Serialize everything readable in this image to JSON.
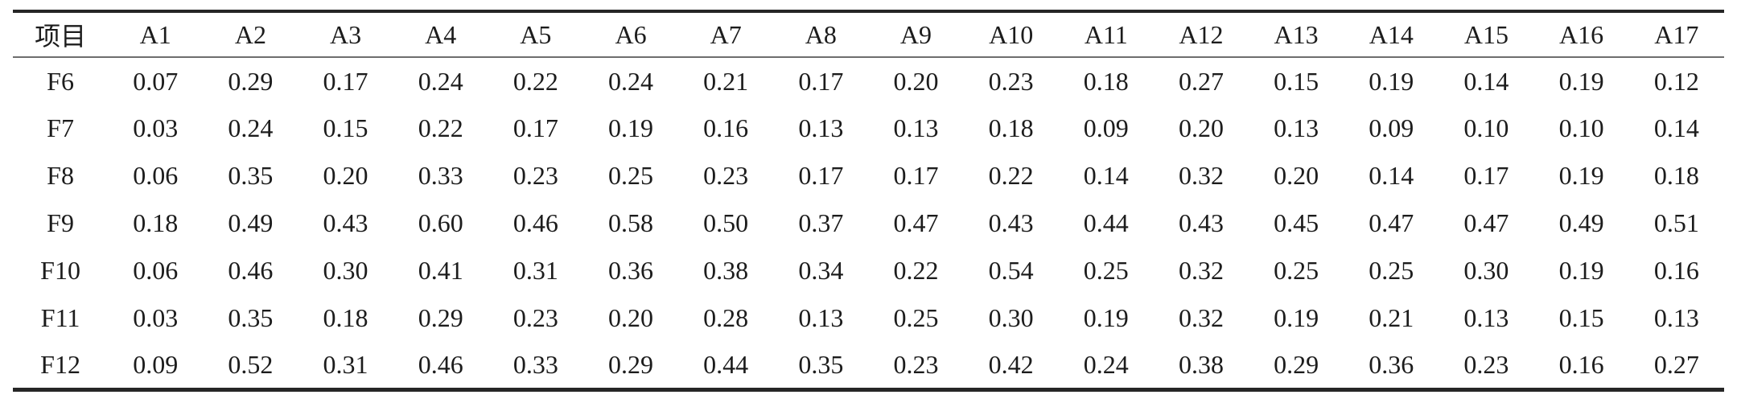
{
  "table": {
    "header_label": "项目",
    "columns": [
      "A1",
      "A2",
      "A3",
      "A4",
      "A5",
      "A6",
      "A7",
      "A8",
      "A9",
      "A10",
      "A11",
      "A12",
      "A13",
      "A14",
      "A15",
      "A16",
      "A17"
    ],
    "rows": [
      {
        "label": "F6",
        "values": [
          "0.07",
          "0.29",
          "0.17",
          "0.24",
          "0.22",
          "0.24",
          "0.21",
          "0.17",
          "0.20",
          "0.23",
          "0.18",
          "0.27",
          "0.15",
          "0.19",
          "0.14",
          "0.19",
          "0.12"
        ]
      },
      {
        "label": "F7",
        "values": [
          "0.03",
          "0.24",
          "0.15",
          "0.22",
          "0.17",
          "0.19",
          "0.16",
          "0.13",
          "0.13",
          "0.18",
          "0.09",
          "0.20",
          "0.13",
          "0.09",
          "0.10",
          "0.10",
          "0.14"
        ]
      },
      {
        "label": "F8",
        "values": [
          "0.06",
          "0.35",
          "0.20",
          "0.33",
          "0.23",
          "0.25",
          "0.23",
          "0.17",
          "0.17",
          "0.22",
          "0.14",
          "0.32",
          "0.20",
          "0.14",
          "0.17",
          "0.19",
          "0.18"
        ]
      },
      {
        "label": "F9",
        "values": [
          "0.18",
          "0.49",
          "0.43",
          "0.60",
          "0.46",
          "0.58",
          "0.50",
          "0.37",
          "0.47",
          "0.43",
          "0.44",
          "0.43",
          "0.45",
          "0.47",
          "0.47",
          "0.49",
          "0.51"
        ]
      },
      {
        "label": "F10",
        "values": [
          "0.06",
          "0.46",
          "0.30",
          "0.41",
          "0.31",
          "0.36",
          "0.38",
          "0.34",
          "0.22",
          "0.54",
          "0.25",
          "0.32",
          "0.25",
          "0.25",
          "0.30",
          "0.19",
          "0.16"
        ]
      },
      {
        "label": "F11",
        "values": [
          "0.03",
          "0.35",
          "0.18",
          "0.29",
          "0.23",
          "0.20",
          "0.28",
          "0.13",
          "0.25",
          "0.30",
          "0.19",
          "0.32",
          "0.19",
          "0.21",
          "0.13",
          "0.15",
          "0.13"
        ]
      },
      {
        "label": "F12",
        "values": [
          "0.09",
          "0.52",
          "0.31",
          "0.46",
          "0.33",
          "0.29",
          "0.44",
          "0.35",
          "0.23",
          "0.42",
          "0.24",
          "0.38",
          "0.29",
          "0.36",
          "0.23",
          "0.16",
          "0.27"
        ]
      }
    ]
  },
  "chart_data": {
    "type": "table",
    "title": "",
    "columns": [
      "项目",
      "A1",
      "A2",
      "A3",
      "A4",
      "A5",
      "A6",
      "A7",
      "A8",
      "A9",
      "A10",
      "A11",
      "A12",
      "A13",
      "A14",
      "A15",
      "A16",
      "A17"
    ],
    "rows": [
      [
        "F6",
        0.07,
        0.29,
        0.17,
        0.24,
        0.22,
        0.24,
        0.21,
        0.17,
        0.2,
        0.23,
        0.18,
        0.27,
        0.15,
        0.19,
        0.14,
        0.19,
        0.12
      ],
      [
        "F7",
        0.03,
        0.24,
        0.15,
        0.22,
        0.17,
        0.19,
        0.16,
        0.13,
        0.13,
        0.18,
        0.09,
        0.2,
        0.13,
        0.09,
        0.1,
        0.1,
        0.14
      ],
      [
        "F8",
        0.06,
        0.35,
        0.2,
        0.33,
        0.23,
        0.25,
        0.23,
        0.17,
        0.17,
        0.22,
        0.14,
        0.32,
        0.2,
        0.14,
        0.17,
        0.19,
        0.18
      ],
      [
        "F9",
        0.18,
        0.49,
        0.43,
        0.6,
        0.46,
        0.58,
        0.5,
        0.37,
        0.47,
        0.43,
        0.44,
        0.43,
        0.45,
        0.47,
        0.47,
        0.49,
        0.51
      ],
      [
        "F10",
        0.06,
        0.46,
        0.3,
        0.41,
        0.31,
        0.36,
        0.38,
        0.34,
        0.22,
        0.54,
        0.25,
        0.32,
        0.25,
        0.25,
        0.3,
        0.19,
        0.16
      ],
      [
        "F11",
        0.03,
        0.35,
        0.18,
        0.29,
        0.23,
        0.2,
        0.28,
        0.13,
        0.25,
        0.3,
        0.19,
        0.32,
        0.19,
        0.21,
        0.13,
        0.15,
        0.13
      ],
      [
        "F12",
        0.09,
        0.52,
        0.31,
        0.46,
        0.33,
        0.29,
        0.44,
        0.35,
        0.23,
        0.42,
        0.24,
        0.38,
        0.29,
        0.36,
        0.23,
        0.16,
        0.27
      ]
    ]
  },
  "colors": {
    "background": "#ffffff",
    "text": "#1c1c1c",
    "rule_heavy": "#262626",
    "rule_light": "#6e6e6e"
  }
}
